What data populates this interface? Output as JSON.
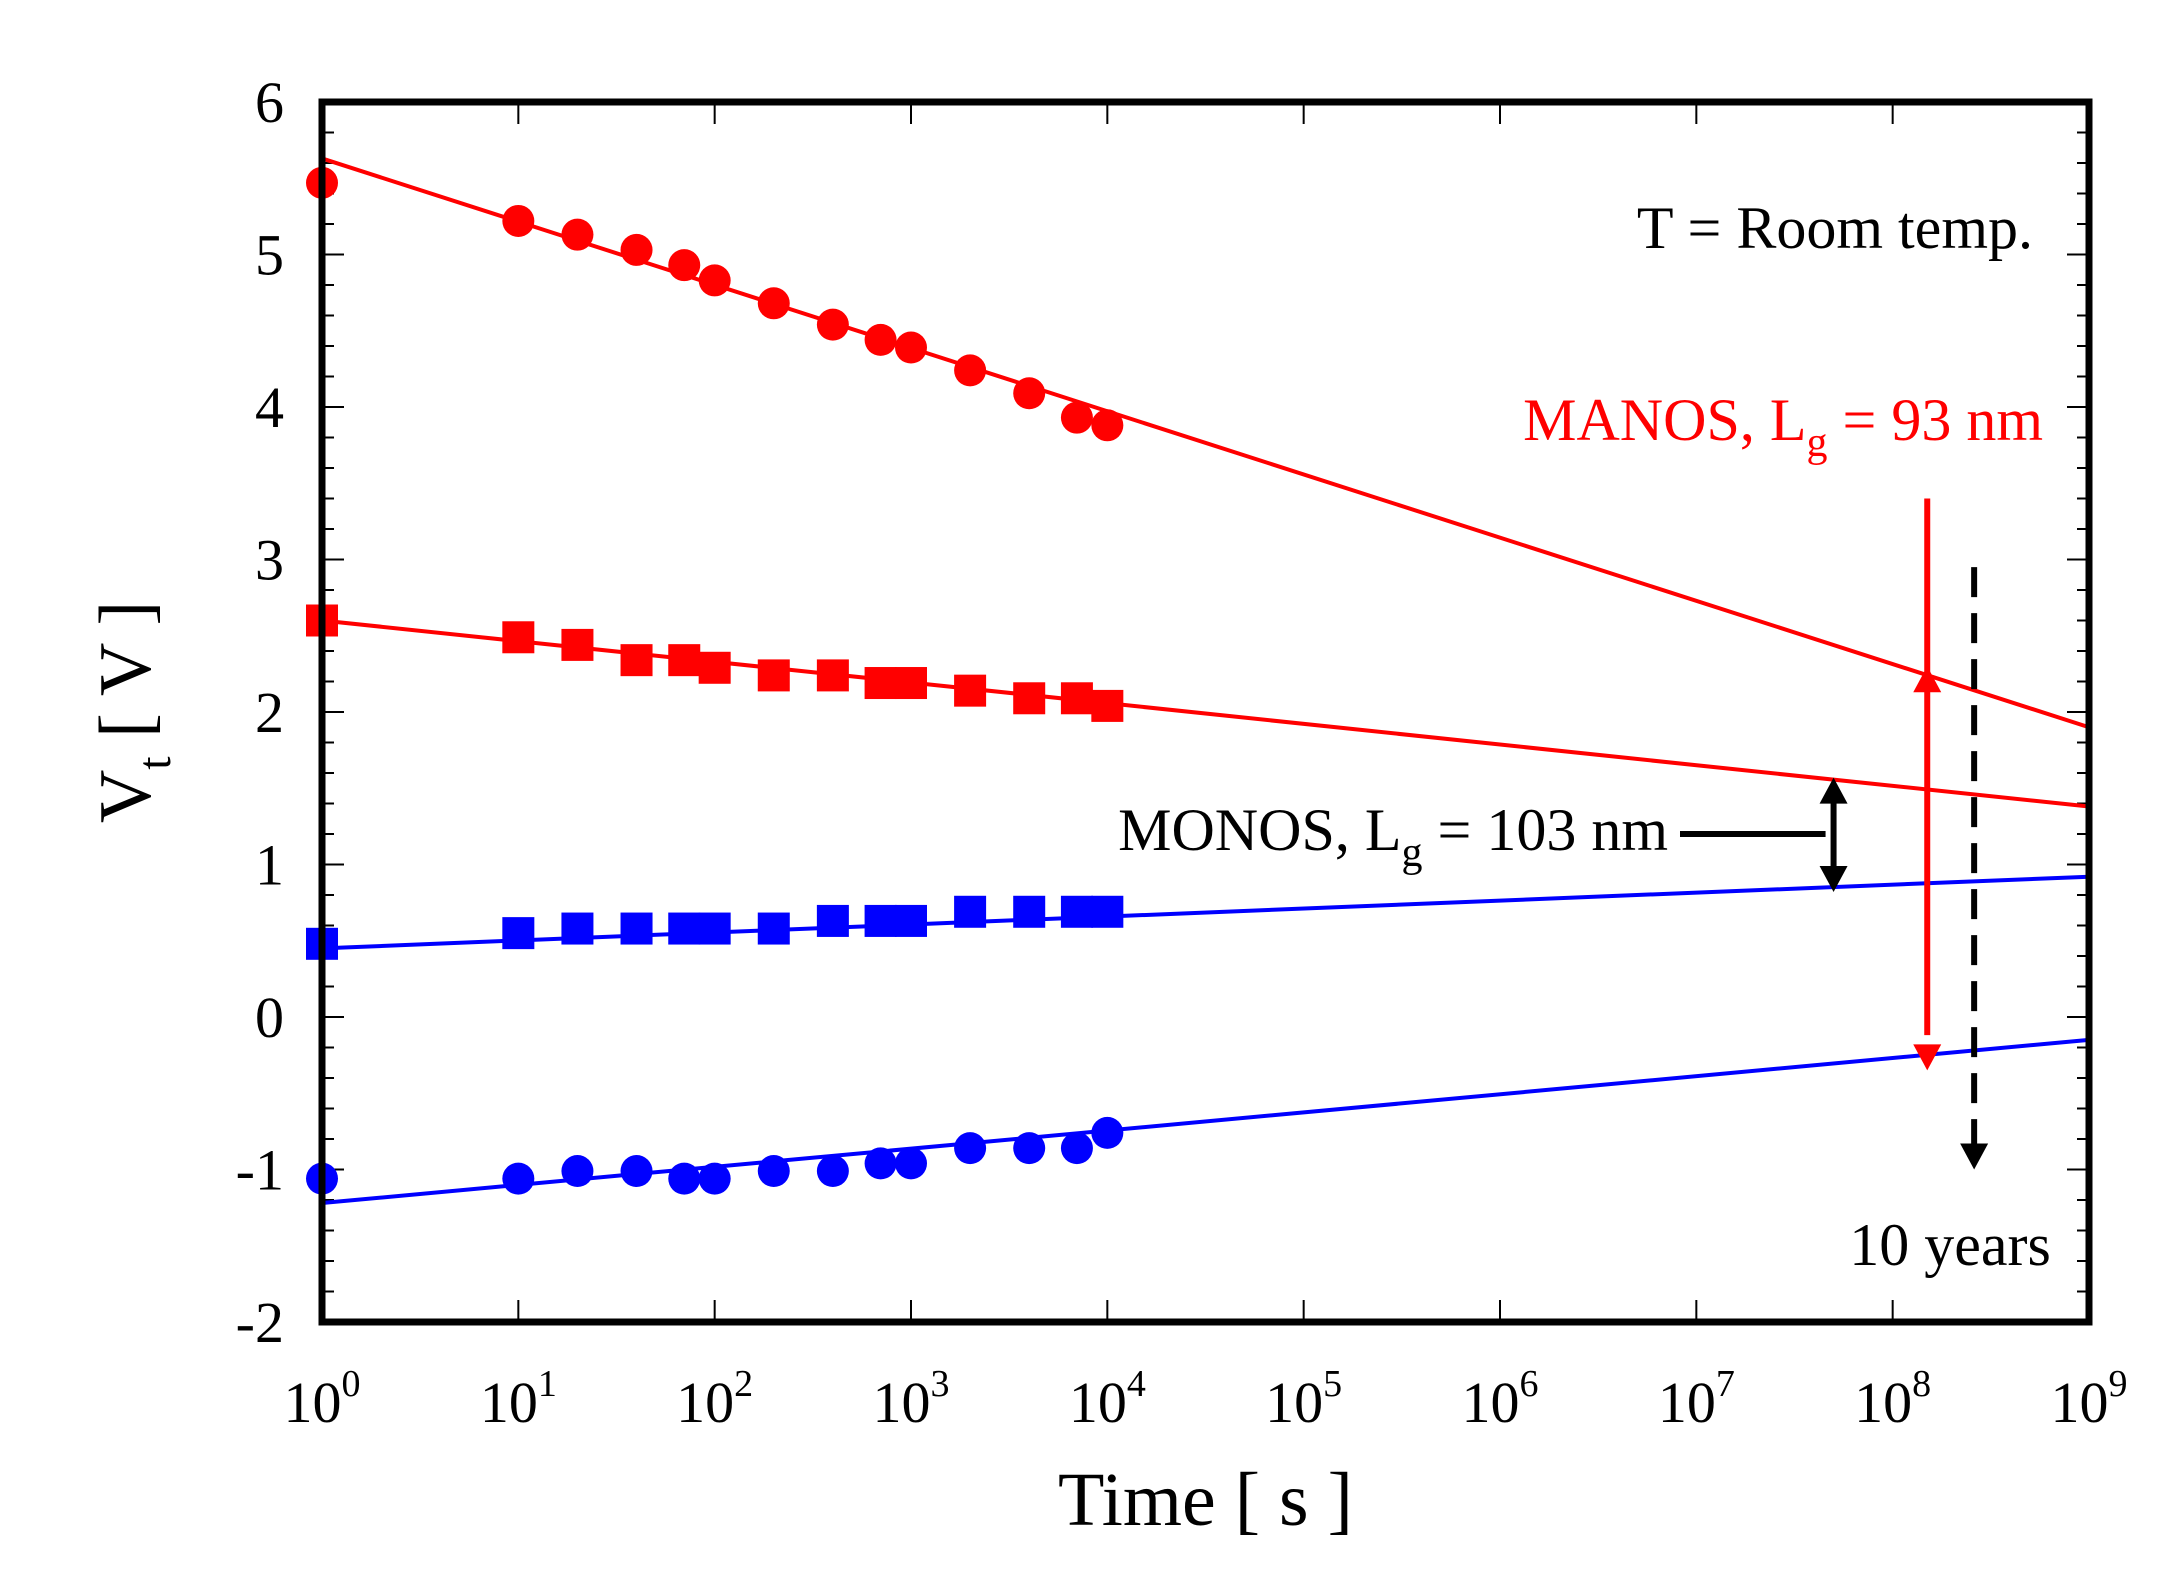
{
  "chart_data": {
    "type": "scatter",
    "x_scale": "log",
    "xlim": [
      1,
      1000000000
    ],
    "ylim": [
      -2,
      6
    ],
    "xlabel": "Time [ s ]",
    "ylabel": {
      "main": "V",
      "sub": "t",
      "unit": " [ V ]"
    },
    "x_ticks": [
      {
        "base": "10",
        "exp": "0",
        "value": 1
      },
      {
        "base": "10",
        "exp": "1",
        "value": 10
      },
      {
        "base": "10",
        "exp": "2",
        "value": 100
      },
      {
        "base": "10",
        "exp": "3",
        "value": 1000
      },
      {
        "base": "10",
        "exp": "4",
        "value": 10000
      },
      {
        "base": "10",
        "exp": "5",
        "value": 100000
      },
      {
        "base": "10",
        "exp": "6",
        "value": 1000000
      },
      {
        "base": "10",
        "exp": "7",
        "value": 10000000
      },
      {
        "base": "10",
        "exp": "8",
        "value": 100000000
      },
      {
        "base": "10",
        "exp": "9",
        "value": 1000000000
      }
    ],
    "y_ticks": [
      "-2",
      "-1",
      "0",
      "1",
      "2",
      "3",
      "4",
      "5",
      "6"
    ],
    "grid": false,
    "series": [
      {
        "marker": "circle",
        "color": "#ff0000",
        "x": [
          1,
          10,
          20,
          40,
          70,
          100,
          200,
          400,
          700,
          1000,
          2000,
          4000,
          7000,
          10000
        ],
        "y": [
          5.47,
          5.22,
          5.13,
          5.03,
          4.93,
          4.83,
          4.68,
          4.54,
          4.44,
          4.39,
          4.24,
          4.09,
          3.93,
          3.88
        ],
        "fit": [
          [
            1,
            5.63
          ],
          [
            1000000000,
            1.9
          ]
        ]
      },
      {
        "marker": "square",
        "color": "#ff0000",
        "x": [
          1,
          10,
          20,
          40,
          70,
          100,
          200,
          400,
          700,
          1000,
          2000,
          4000,
          7000,
          10000
        ],
        "y": [
          2.6,
          2.49,
          2.44,
          2.34,
          2.34,
          2.29,
          2.24,
          2.24,
          2.19,
          2.19,
          2.14,
          2.09,
          2.09,
          2.04
        ],
        "fit": [
          [
            1,
            2.6
          ],
          [
            1000000000,
            1.38
          ]
        ]
      },
      {
        "marker": "square",
        "color": "#0000ff",
        "x": [
          1,
          10,
          20,
          40,
          70,
          100,
          200,
          400,
          700,
          1000,
          2000,
          4000,
          7000,
          10000
        ],
        "y": [
          0.48,
          0.55,
          0.58,
          0.58,
          0.58,
          0.58,
          0.58,
          0.63,
          0.63,
          0.63,
          0.69,
          0.69,
          0.69,
          0.69
        ],
        "fit": [
          [
            1,
            0.45
          ],
          [
            1000000000,
            0.92
          ]
        ]
      },
      {
        "marker": "circle",
        "color": "#0000ff",
        "x": [
          1,
          10,
          20,
          40,
          70,
          100,
          200,
          400,
          700,
          1000,
          2000,
          4000,
          7000,
          10000
        ],
        "y": [
          -1.06,
          -1.06,
          -1.01,
          -1.01,
          -1.06,
          -1.06,
          -1.01,
          -1.01,
          -0.96,
          -0.96,
          -0.86,
          -0.86,
          -0.86,
          -0.76
        ],
        "fit": [
          [
            1,
            -1.22
          ],
          [
            1000000000,
            -0.15
          ]
        ]
      }
    ],
    "annotations": {
      "temperature": "T = Room temp.",
      "manos": {
        "prefix": "MANOS, L",
        "sub": "g",
        "suffix": " = 93 nm",
        "color": "#ff0000"
      },
      "monos": {
        "prefix": "MONOS, L",
        "sub": "g",
        "suffix": " = 103 nm",
        "color": "#000000"
      },
      "ten_years": "10 years"
    }
  }
}
